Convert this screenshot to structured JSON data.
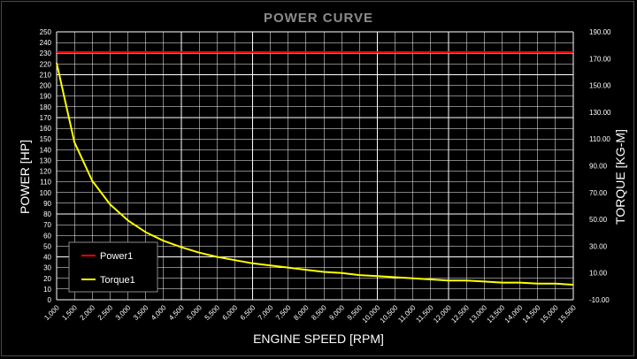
{
  "chart_data": {
    "type": "line",
    "title": "POWER CURVE",
    "xlabel": "ENGINE SPEED [RPM]",
    "ylabel_left": "POWER [HP]",
    "ylabel_right": "TORQUE [KG-M]",
    "x_ticks": [
      "1,000",
      "1,500",
      "2,000",
      "2,500",
      "3,000",
      "3,500",
      "4,000",
      "4,500",
      "5,000",
      "5,500",
      "6,000",
      "6,500",
      "7,000",
      "7,500",
      "8,000",
      "8,500",
      "9,000",
      "9,500",
      "10,000",
      "10,500",
      "11,000",
      "11,500",
      "12,000",
      "12,500",
      "13,000",
      "13,500",
      "14,000",
      "14,500",
      "15,000",
      "15,500"
    ],
    "x": [
      1000,
      1500,
      2000,
      2500,
      3000,
      3500,
      4000,
      4500,
      5000,
      5500,
      6000,
      6500,
      7000,
      7500,
      8000,
      8500,
      9000,
      9500,
      10000,
      10500,
      11000,
      11500,
      12000,
      12500,
      13000,
      13500,
      14000,
      14500,
      15000,
      15500
    ],
    "y_left_ticks": [
      "0",
      "10",
      "20",
      "30",
      "40",
      "50",
      "60",
      "70",
      "80",
      "90",
      "100",
      "110",
      "120",
      "130",
      "140",
      "150",
      "160",
      "170",
      "180",
      "190",
      "200",
      "210",
      "220",
      "230",
      "240",
      "250"
    ],
    "y_left_range": [
      0,
      250
    ],
    "y_right_ticks": [
      "-10.00",
      "10.00",
      "30.00",
      "50.00",
      "70.00",
      "90.00",
      "110.00",
      "130.00",
      "150.00",
      "170.00",
      "190.00"
    ],
    "y_right_range": [
      -10,
      190
    ],
    "grid": true,
    "legend_position": "bottom-left",
    "series": [
      {
        "name": "Power1",
        "color": "#ff0000",
        "axis": "left",
        "values": [
          231,
          231,
          231,
          231,
          231,
          231,
          231,
          231,
          231,
          231,
          231,
          231,
          231,
          231,
          231,
          231,
          231,
          231,
          231,
          231,
          231,
          231,
          231,
          231,
          231,
          231,
          231,
          231,
          231,
          231
        ]
      },
      {
        "name": "Torque1",
        "color": "#ffff00",
        "axis": "left",
        "values": [
          221,
          147,
          111,
          89,
          74,
          63,
          55,
          49,
          44,
          40,
          37,
          34,
          32,
          30,
          28,
          26,
          25,
          23,
          22,
          21,
          20,
          19,
          18,
          18,
          17,
          16,
          16,
          15,
          15,
          14
        ]
      }
    ]
  }
}
